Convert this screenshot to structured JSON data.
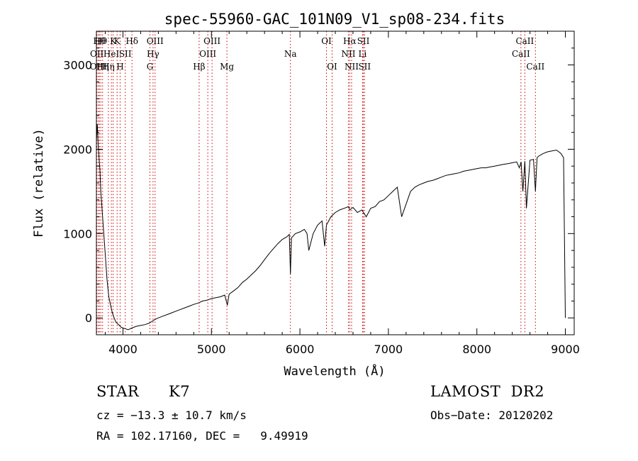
{
  "chart_data": {
    "type": "line",
    "title": "spec-55960-GAC_101N09_V1_sp08-234.fits",
    "xlabel": "Wavelength (Å)",
    "ylabel": "Flux (relative)",
    "xlim": [
      3700,
      9100
    ],
    "ylim": [
      -200,
      3400
    ],
    "xticks": [
      4000,
      5000,
      6000,
      7000,
      8000,
      9000
    ],
    "yticks": [
      0,
      1000,
      2000,
      3000
    ],
    "grid": false,
    "line_color": "#000000",
    "marker_color": "#cc0000",
    "series": [
      {
        "x": [
          3700,
          3710,
          3720,
          3730,
          3740,
          3750,
          3760,
          3770,
          3780,
          3800,
          3820,
          3840,
          3860,
          3880,
          3900,
          3920,
          3950,
          3980,
          4000,
          4030,
          4060,
          4100,
          4150,
          4200,
          4250,
          4300,
          4330,
          4360,
          4400,
          4450,
          4500,
          4550,
          4600,
          4650,
          4700,
          4750,
          4800,
          4860,
          4900,
          4950,
          5000,
          5050,
          5100,
          5150,
          5180,
          5200,
          5250,
          5300,
          5350,
          5400,
          5450,
          5500,
          5550,
          5600,
          5650,
          5700,
          5750,
          5800,
          5850,
          5880,
          5893,
          5905,
          5950,
          6000,
          6050,
          6080,
          6100,
          6150,
          6200,
          6250,
          6280,
          6300,
          6350,
          6400,
          6450,
          6500,
          6550,
          6563,
          6600,
          6650,
          6700,
          6750,
          6800,
          6850,
          6900,
          6950,
          7000,
          7050,
          7100,
          7150,
          7200,
          7250,
          7300,
          7350,
          7400,
          7450,
          7500,
          7550,
          7600,
          7650,
          7700,
          7750,
          7800,
          7850,
          7900,
          7950,
          8000,
          8050,
          8100,
          8150,
          8200,
          8250,
          8300,
          8350,
          8400,
          8450,
          8480,
          8500,
          8520,
          8542,
          8560,
          8600,
          8640,
          8662,
          8680,
          8700,
          8750,
          8800,
          8850,
          8900,
          8950,
          8980,
          9000
        ],
        "values": [
          2100,
          2300,
          2050,
          1900,
          1750,
          1500,
          1350,
          1200,
          1050,
          750,
          450,
          250,
          150,
          60,
          0,
          -50,
          -80,
          -110,
          -120,
          -130,
          -140,
          -120,
          -100,
          -90,
          -80,
          -60,
          -40,
          -20,
          0,
          20,
          40,
          60,
          80,
          100,
          120,
          140,
          160,
          180,
          200,
          210,
          230,
          240,
          250,
          270,
          150,
          280,
          320,
          360,
          420,
          460,
          510,
          560,
          620,
          690,
          760,
          820,
          880,
          930,
          960,
          990,
          520,
          950,
          1000,
          1020,
          1050,
          1000,
          800,
          1000,
          1100,
          1150,
          850,
          1100,
          1200,
          1250,
          1280,
          1300,
          1320,
          1280,
          1310,
          1250,
          1280,
          1200,
          1300,
          1320,
          1380,
          1400,
          1450,
          1500,
          1550,
          1200,
          1350,
          1500,
          1550,
          1580,
          1600,
          1620,
          1630,
          1650,
          1670,
          1690,
          1700,
          1710,
          1720,
          1740,
          1750,
          1760,
          1770,
          1780,
          1780,
          1790,
          1800,
          1810,
          1820,
          1830,
          1840,
          1850,
          1780,
          1850,
          1500,
          1860,
          1300,
          1870,
          1880,
          1500,
          1900,
          1920,
          1950,
          1970,
          1980,
          1990,
          1950,
          1900,
          0
        ]
      }
    ],
    "lines": [
      {
        "x": 3705,
        "label": "OII",
        "row": 1
      },
      {
        "x": 3722,
        "label": "OIII",
        "row": 2
      },
      {
        "x": 3734,
        "label": "Hθ",
        "row": 0
      },
      {
        "x": 3750,
        "label": "Hθ",
        "row": 0
      },
      {
        "x": 3770,
        "label": "Hη",
        "row": 2
      },
      {
        "x": 3835,
        "label": "Hη",
        "row": 2
      },
      {
        "x": 3869,
        "label": "HeI",
        "row": 1
      },
      {
        "x": 3889,
        "label": "K",
        "row": 0
      },
      {
        "x": 3934,
        "label": "K",
        "row": 0
      },
      {
        "x": 3968,
        "label": "H",
        "row": 2
      },
      {
        "x": 4026,
        "label": "SII",
        "row": 1
      },
      {
        "x": 4102,
        "label": "Hδ",
        "row": 0
      },
      {
        "x": 4305,
        "label": "G",
        "row": 2
      },
      {
        "x": 4340,
        "label": "Hγ",
        "row": 1
      },
      {
        "x": 4363,
        "label": "OIII",
        "row": 0
      },
      {
        "x": 4861,
        "label": "Hβ",
        "row": 2
      },
      {
        "x": 4959,
        "label": "OIII",
        "row": 1
      },
      {
        "x": 5007,
        "label": "OIII",
        "row": 0
      },
      {
        "x": 5175,
        "label": "Mg",
        "row": 2
      },
      {
        "x": 5893,
        "label": "Na",
        "row": 1
      },
      {
        "x": 6300,
        "label": "OI",
        "row": 0
      },
      {
        "x": 6364,
        "label": "OI",
        "row": 2
      },
      {
        "x": 6548,
        "label": "NII",
        "row": 1
      },
      {
        "x": 6563,
        "label": "Hα",
        "row": 0
      },
      {
        "x": 6584,
        "label": "NII",
        "row": 2
      },
      {
        "x": 6708,
        "label": "Li",
        "row": 1
      },
      {
        "x": 6717,
        "label": "SII",
        "row": 0
      },
      {
        "x": 6731,
        "label": "SII",
        "row": 2
      },
      {
        "x": 8498,
        "label": "CaII",
        "row": 1
      },
      {
        "x": 8542,
        "label": "CaII",
        "row": 0
      },
      {
        "x": 8662,
        "label": "CaII",
        "row": 2
      }
    ]
  },
  "info": {
    "object_class": "STAR",
    "subclass": "K7",
    "survey": "LAMOST  DR2",
    "cz": "cz = −13.3 ± 10.7 km/s",
    "obs_date": "Obs−Date: 20120202",
    "radec": "RA = 102.17160, DEC =   9.49919"
  }
}
